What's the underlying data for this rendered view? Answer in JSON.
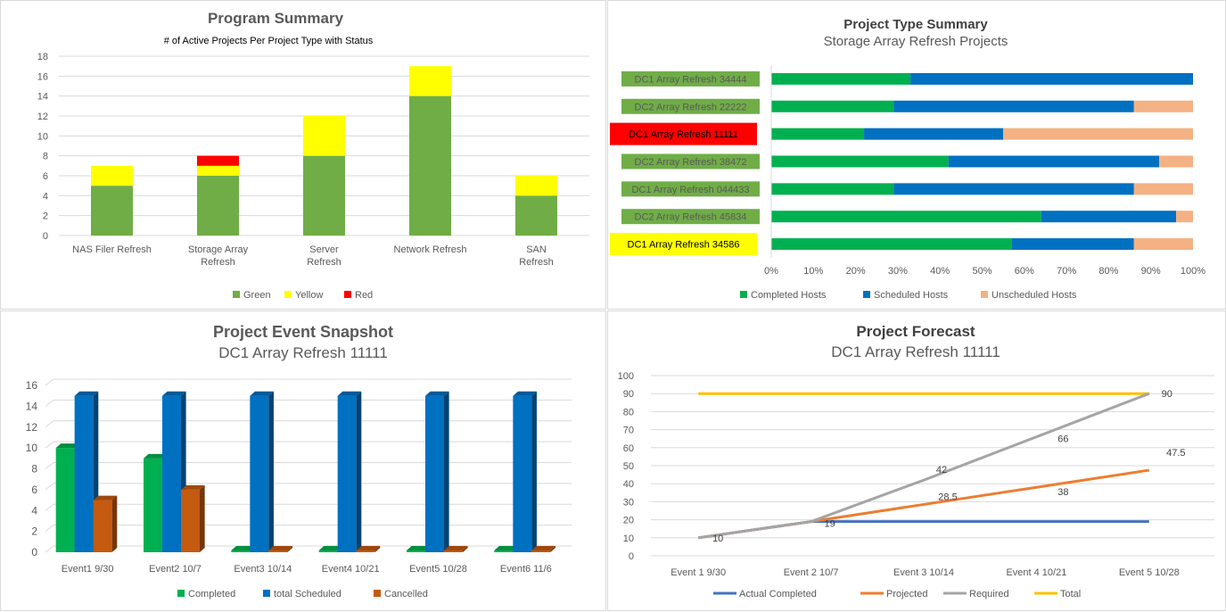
{
  "colors": {
    "green": "#70ad47",
    "yellow": "#ffff00",
    "red": "#ff0000",
    "completed_green": "#00b050",
    "blue": "#0070c0",
    "peach": "#f4b183",
    "orange": "#c55a11",
    "line_blue": "#4472c4",
    "line_orange": "#ed7d31",
    "line_gray": "#a5a5a5",
    "line_gold": "#ffc000",
    "grid": "#d9d9d9",
    "text": "#595959"
  },
  "chart_data": [
    {
      "id": "program-summary",
      "type": "bar",
      "stacked": true,
      "title": "Program Summary",
      "subtitle": "# of Active Projects Per Project Type with Status",
      "categories": [
        "NAS Filer Refresh",
        "Storage Array Refresh",
        "Server Refresh",
        "Network Refresh",
        "SAN Refresh"
      ],
      "category_lines": [
        [
          "NAS Filer Refresh"
        ],
        [
          "Storage Array",
          "Refresh"
        ],
        [
          "Server",
          "Refresh"
        ],
        [
          "Network Refresh"
        ],
        [
          "SAN",
          "Refresh"
        ]
      ],
      "series": [
        {
          "name": "Green",
          "values": [
            5,
            6,
            8,
            14,
            4
          ]
        },
        {
          "name": "Yellow",
          "values": [
            2,
            1,
            4,
            3,
            2
          ]
        },
        {
          "name": "Red",
          "values": [
            0,
            1,
            0,
            0,
            0
          ]
        }
      ],
      "ylim": [
        0,
        18
      ],
      "yticks": [
        "0",
        "2",
        "4",
        "6",
        "8",
        "10",
        "12",
        "14",
        "16",
        "18"
      ],
      "legend": "bottom",
      "grid": true
    },
    {
      "id": "project-type-summary",
      "type": "bar",
      "orientation": "horizontal",
      "stacked": "percent",
      "title": "Project Type Summary",
      "subtitle": "Storage Array Refresh Projects",
      "categories": [
        {
          "label": "DC1 Array Refresh 34444",
          "status": "green"
        },
        {
          "label": "DC2 Array Refresh 22222",
          "status": "green"
        },
        {
          "label": "DC1 Array Refresh 11111",
          "status": "red"
        },
        {
          "label": "DC2 Array Refresh 38472",
          "status": "green"
        },
        {
          "label": "DC1 Array Refresh 044433",
          "status": "green"
        },
        {
          "label": "DC2 Array Refresh 45834",
          "status": "green"
        },
        {
          "label": "DC1 Array Refresh 34586",
          "status": "yellow"
        }
      ],
      "series": [
        {
          "name": "Completed Hosts",
          "values": [
            33,
            29,
            22,
            42,
            29,
            64,
            57
          ]
        },
        {
          "name": "Scheduled Hosts",
          "values": [
            67,
            57,
            33,
            50,
            57,
            32,
            29
          ]
        },
        {
          "name": "Unscheduled Hosts",
          "values": [
            0,
            14,
            45,
            8,
            14,
            4,
            14
          ]
        }
      ],
      "xticks": [
        "0%",
        "10%",
        "20%",
        "30%",
        "40%",
        "50%",
        "60%",
        "70%",
        "80%",
        "90%",
        "100%"
      ],
      "legend": "bottom",
      "grid": false
    },
    {
      "id": "project-event-snapshot",
      "type": "bar",
      "style": "3d-clustered",
      "title": "Project Event Snapshot",
      "subtitle": "DC1 Array Refresh 11111",
      "categories": [
        "Event1 9/30",
        "Event2 10/7",
        "Event3 10/14",
        "Event4 10/21",
        "Event5 10/28",
        "Event6 11/6"
      ],
      "series": [
        {
          "name": "Completed",
          "values": [
            10,
            9,
            0,
            0,
            0,
            0
          ]
        },
        {
          "name": "total Scheduled",
          "values": [
            15,
            15,
            15,
            15,
            15,
            15
          ]
        },
        {
          "name": "Cancelled",
          "values": [
            5,
            6,
            0,
            0,
            0,
            0
          ]
        }
      ],
      "ylim": [
        0,
        16
      ],
      "yticks": [
        "0",
        "2",
        "4",
        "6",
        "8",
        "10",
        "12",
        "14",
        "16"
      ],
      "legend": "bottom",
      "grid": true
    },
    {
      "id": "project-forecast",
      "type": "line",
      "title": "Project Forecast",
      "subtitle": "DC1 Array Refresh 11111",
      "categories": [
        "Event 1 9/30",
        "Event 2 10/7",
        "Event 3 10/14",
        "Event 4 10/21",
        "Event 5 10/28"
      ],
      "series": [
        {
          "name": "Actual Completed",
          "values": [
            10,
            19,
            19,
            19,
            19
          ]
        },
        {
          "name": "Projected",
          "values": [
            10,
            19,
            28.5,
            38,
            47.5
          ]
        },
        {
          "name": "Required",
          "values": [
            10,
            19,
            42,
            66,
            90
          ]
        },
        {
          "name": "Total",
          "values": [
            90,
            90,
            90,
            90,
            90
          ]
        }
      ],
      "data_labels": [
        {
          "series": 2,
          "index": 0,
          "text": "10",
          "dx": 22,
          "dy": 4
        },
        {
          "series": 1,
          "index": 1,
          "text": "19",
          "dx": 21,
          "dy": 6
        },
        {
          "series": 2,
          "index": 2,
          "text": "42",
          "dx": 20,
          "dy": -8
        },
        {
          "series": 1,
          "index": 2,
          "text": "28.5",
          "dx": 27,
          "dy": -5
        },
        {
          "series": 2,
          "index": 3,
          "text": "66",
          "dx": 30,
          "dy": 6
        },
        {
          "series": 1,
          "index": 3,
          "text": "38",
          "dx": 30,
          "dy": 9
        },
        {
          "series": 3,
          "index": 4,
          "text": "90",
          "dx": 20,
          "dy": 4
        },
        {
          "series": 1,
          "index": 4,
          "text": "47.5",
          "dx": 30,
          "dy": -16
        }
      ],
      "ylim": [
        0,
        100
      ],
      "yticks": [
        "0",
        "10",
        "20",
        "30",
        "40",
        "50",
        "60",
        "70",
        "80",
        "90",
        "100"
      ],
      "legend": "bottom",
      "grid": true
    }
  ]
}
